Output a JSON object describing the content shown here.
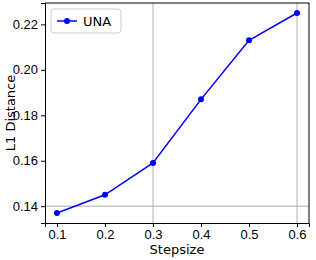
{
  "chart_data": {
    "type": "line",
    "x_label": "Stepsize",
    "y_label": "L1 Distance",
    "x": [
      0.1,
      0.2,
      0.3,
      0.4,
      0.5,
      0.6
    ],
    "series": [
      {
        "name": "UNA",
        "color": "#0000ff",
        "marker": "circle",
        "line_style": "solid",
        "values": [
          0.137,
          0.145,
          0.159,
          0.187,
          0.213,
          0.225
        ]
      }
    ],
    "xlim": [
      0.075,
      0.625
    ],
    "xticks": [
      0.1,
      0.2,
      0.3,
      0.4,
      0.5,
      0.6
    ],
    "ylim": [
      0.1326,
      0.2294
    ],
    "yticks": [
      0.14,
      0.16,
      0.18,
      {
        "value": 0.2,
        "label": "0.20"
      },
      0.22
    ],
    "vlines": [
      0.3,
      0.6
    ],
    "hlines": [
      0.14
    ],
    "grid": false,
    "legend": "upper left"
  }
}
